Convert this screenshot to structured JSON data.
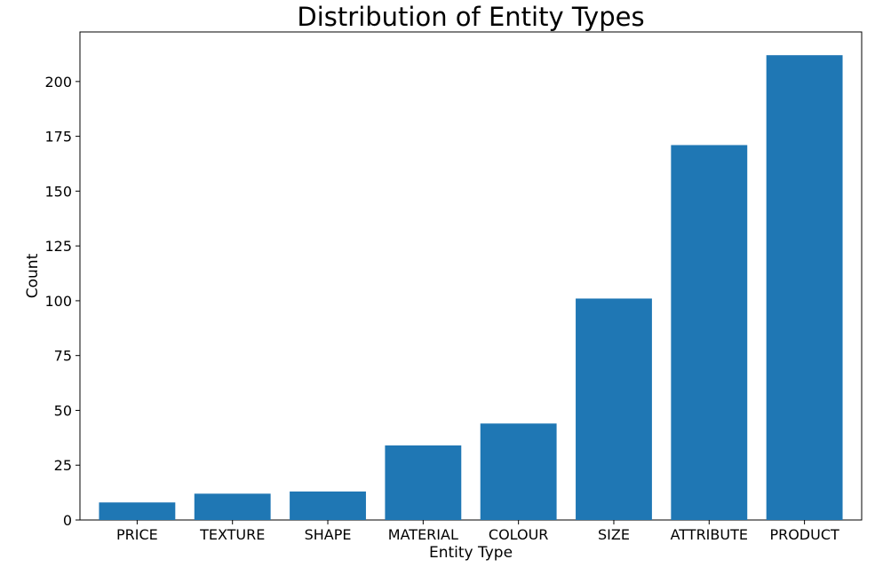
{
  "chart_data": {
    "type": "bar",
    "title": "Distribution of Entity Types",
    "xlabel": "Entity Type",
    "ylabel": "Count",
    "categories": [
      "PRICE",
      "TEXTURE",
      "SHAPE",
      "MATERIAL",
      "COLOUR",
      "SIZE",
      "ATTRIBUTE",
      "PRODUCT"
    ],
    "values": [
      8,
      12,
      13,
      34,
      44,
      101,
      171,
      212
    ],
    "ylim": [
      0,
      222.6
    ],
    "yticks": [
      0,
      25,
      50,
      75,
      100,
      125,
      150,
      175,
      200
    ],
    "grid": false,
    "legend": "none",
    "bar_color": "#1f77b4"
  }
}
